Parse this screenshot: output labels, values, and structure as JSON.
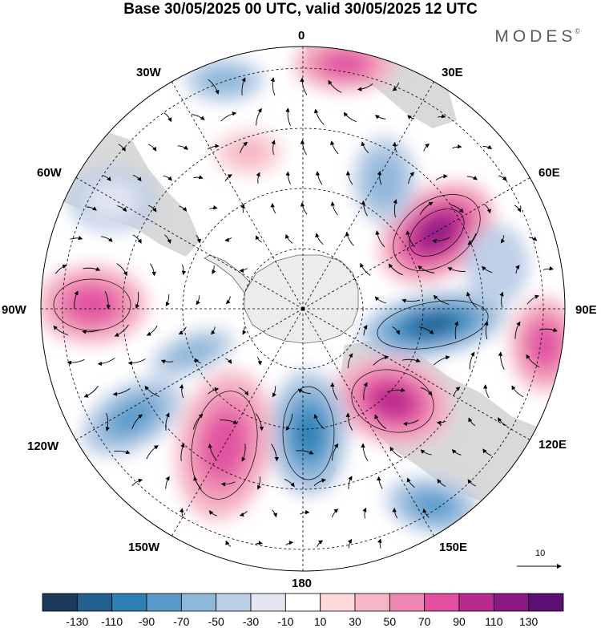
{
  "title": "Base 30/05/2025 00 UTC, valid 30/05/2025 12 UTC",
  "brand": {
    "name": "MODES",
    "mark": "©"
  },
  "map": {
    "projection": "south-polar-stereographic",
    "longitude_labels": [
      {
        "id": "lon-0",
        "text": "0"
      },
      {
        "id": "lon-30e",
        "text": "30E"
      },
      {
        "id": "lon-60e",
        "text": "60E"
      },
      {
        "id": "lon-90e",
        "text": "90E"
      },
      {
        "id": "lon-120e",
        "text": "120E"
      },
      {
        "id": "lon-150e",
        "text": "150E"
      },
      {
        "id": "lon-180",
        "text": "180"
      },
      {
        "id": "lon-150w",
        "text": "150W"
      },
      {
        "id": "lon-120w",
        "text": "120W"
      },
      {
        "id": "lon-90w",
        "text": "90W"
      },
      {
        "id": "lon-60w",
        "text": "60W"
      },
      {
        "id": "lon-30w",
        "text": "30W"
      }
    ],
    "reference_vector": {
      "label": "10"
    },
    "colors": {
      "ocean": "#ffffff",
      "land": "#d9d9d9",
      "antarctica": "#ececec",
      "coast": "#555555"
    }
  },
  "colorbar": {
    "labels": [
      "-130",
      "-110",
      "-90",
      "-70",
      "-50",
      "-30",
      "-10",
      "10",
      "30",
      "50",
      "70",
      "90",
      "110",
      "130"
    ],
    "colors": [
      "#1b3a5c",
      "#235f8f",
      "#2f7fb5",
      "#5a9bcb",
      "#8fb7da",
      "#bccde6",
      "#e3e6f1",
      "#ffffff",
      "#fbdada",
      "#f6b6c5",
      "#ee88b3",
      "#e0509f",
      "#b92a8f",
      "#8a1984",
      "#5c0f73"
    ]
  }
}
